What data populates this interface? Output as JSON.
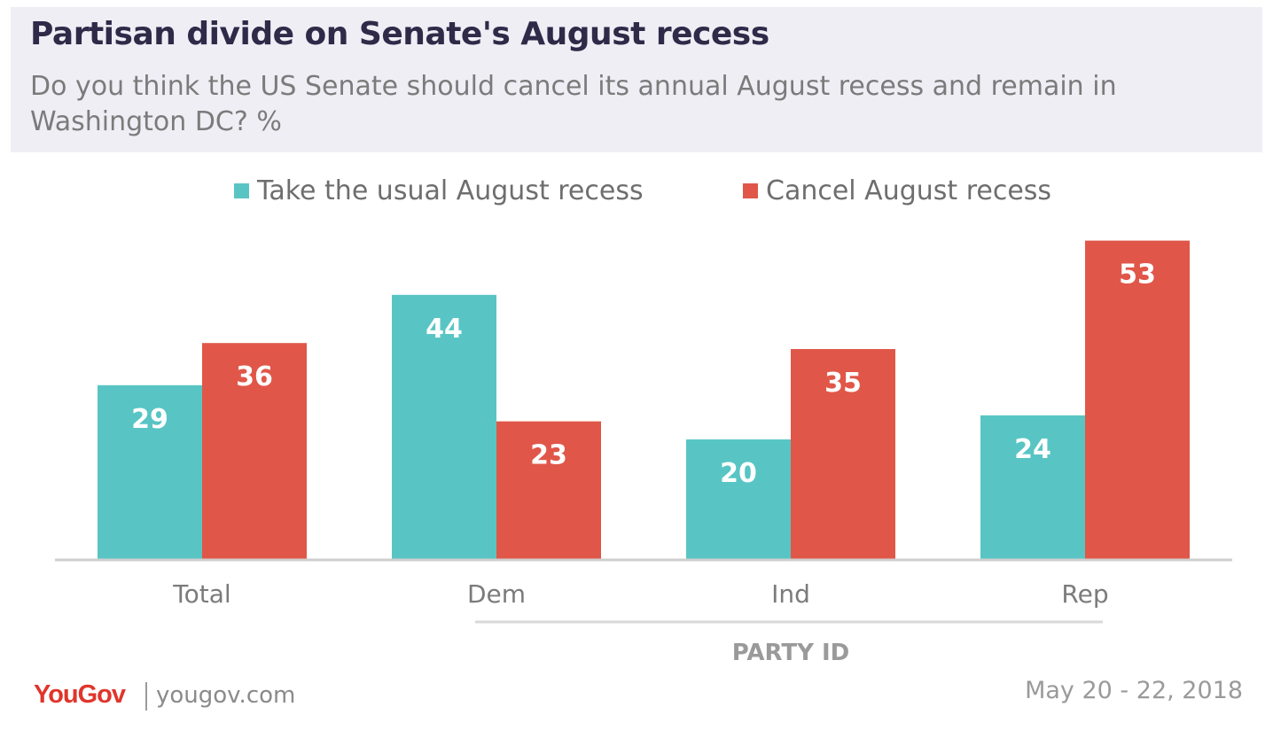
{
  "header": {
    "title": "Partisan divide on Senate's August recess",
    "subtitle": "Do you think the US Senate should cancel its annual August recess and remain in Washington DC? %"
  },
  "legend": {
    "items": [
      {
        "label": "Take the usual August recess",
        "color": "#58c5c4"
      },
      {
        "label": "Cancel August recess",
        "color": "#e05749"
      }
    ]
  },
  "chart_data": {
    "type": "bar",
    "categories": [
      "Total",
      "Dem",
      "Ind",
      "Rep"
    ],
    "series": [
      {
        "name": "Take the usual August recess",
        "values": [
          29,
          44,
          20,
          24
        ],
        "color": "#58c5c4"
      },
      {
        "name": "Cancel August recess",
        "values": [
          36,
          23,
          35,
          53
        ],
        "color": "#e05749"
      }
    ],
    "group_label": "PARTY ID",
    "grouped_categories": [
      "Dem",
      "Ind",
      "Rep"
    ],
    "ylim": [
      0,
      55
    ]
  },
  "footer": {
    "brand": "YouGov",
    "site": "yougov.com",
    "date": "May 20 - 22, 2018"
  }
}
